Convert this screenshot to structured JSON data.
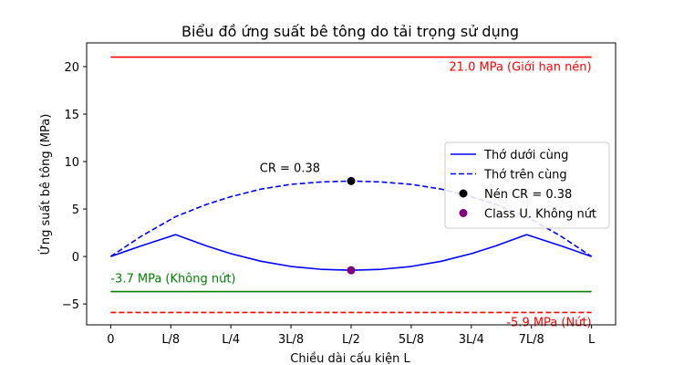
{
  "chart_data": {
    "type": "line",
    "title": "Biểu đồ ứng suất bê tông do tải trọng sử dụng",
    "xlabel": "Chiều dài cấu kiện L",
    "ylabel": "Ứng suất bê tông (MPa)",
    "xlim": [
      -0.05,
      1.05
    ],
    "ylim": [
      -7.2,
      22.5
    ],
    "x_ticks": [
      {
        "value": 0,
        "label": "0"
      },
      {
        "value": 0.125,
        "label": "L/8"
      },
      {
        "value": 0.25,
        "label": "L/4"
      },
      {
        "value": 0.375,
        "label": "3L/8"
      },
      {
        "value": 0.5,
        "label": "L/2"
      },
      {
        "value": 0.625,
        "label": "5L/8"
      },
      {
        "value": 0.75,
        "label": "3L/4"
      },
      {
        "value": 0.875,
        "label": "7L/8"
      },
      {
        "value": 1,
        "label": "L"
      }
    ],
    "y_ticks": [
      {
        "value": -5,
        "label": "−5"
      },
      {
        "value": 0,
        "label": "0"
      },
      {
        "value": 5,
        "label": "5"
      },
      {
        "value": 10,
        "label": "10"
      },
      {
        "value": 15,
        "label": "15"
      },
      {
        "value": 20,
        "label": "20"
      }
    ],
    "series": [
      {
        "name": "Thớ dưới cùng",
        "color": "#0000ff",
        "dash": "solid",
        "x": [
          0,
          0.0625,
          0.135,
          0.2,
          0.25,
          0.3125,
          0.375,
          0.4375,
          0.5,
          0.5625,
          0.625,
          0.6875,
          0.75,
          0.8,
          0.865,
          0.9375,
          1
        ],
        "y": [
          0,
          1.1,
          2.3,
          1.1,
          0.3,
          -0.5,
          -1.05,
          -1.35,
          -1.45,
          -1.35,
          -1.05,
          -0.5,
          0.3,
          1.1,
          2.3,
          1.1,
          0
        ]
      },
      {
        "name": "Thớ trên cùng",
        "color": "#0000ff",
        "dash": "dashed",
        "x": [
          0,
          0.0625,
          0.135,
          0.2,
          0.25,
          0.3125,
          0.375,
          0.4375,
          0.5,
          0.5625,
          0.625,
          0.6875,
          0.75,
          0.8,
          0.865,
          0.9375,
          1
        ],
        "y": [
          0,
          2.1,
          4.2,
          5.5,
          6.3,
          7.1,
          7.6,
          7.85,
          7.95,
          7.85,
          7.6,
          7.1,
          6.3,
          5.5,
          4.2,
          2.1,
          0
        ]
      }
    ],
    "points": [
      {
        "name": "Nén CR = 0.38",
        "x": 0.5,
        "y": 7.95,
        "color": "#000000"
      },
      {
        "name": "Class U. Không nứt",
        "x": 0.5,
        "y": -1.45,
        "color": "#800080"
      }
    ],
    "hlines": [
      {
        "y": 21.0,
        "color": "#ff0000",
        "dash": "solid",
        "label": "21.0 MPa (Giới hạn nén)",
        "label_color": "#ff0000"
      },
      {
        "y": -3.7,
        "color": "#008000",
        "dash": "solid",
        "label": "-3.7 MPa (Không nứt)",
        "label_color": "#008000"
      },
      {
        "y": -5.9,
        "color": "#ff0000",
        "dash": "dashed",
        "label": "-5.9 MPa (Nứt)",
        "label_color": "#ff0000"
      }
    ],
    "annotation": {
      "text": "CR = 0.38",
      "x": 0.5,
      "y": 7.95
    },
    "legend": {
      "position": "right",
      "entries": [
        {
          "label": "Thớ dưới cùng",
          "kind": "line",
          "color": "#0000ff",
          "dash": "solid"
        },
        {
          "label": "Thớ trên cùng",
          "kind": "line",
          "color": "#0000ff",
          "dash": "dashed"
        },
        {
          "label": "Nén CR = 0.38",
          "kind": "marker",
          "color": "#000000"
        },
        {
          "label": "Class U. Không nứt",
          "kind": "marker",
          "color": "#800080"
        }
      ]
    },
    "grid": false
  }
}
